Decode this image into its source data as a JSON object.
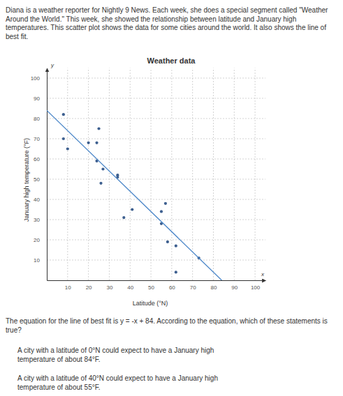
{
  "intro": "Diana is a weather reporter for Nightly 9 News. Each week, she does a special segment called \"Weather Around the World.\" This week, she showed the relationship between latitude and January high temperatures. This scatter plot shows the data for some cities around the world. It also shows the line of best fit.",
  "chart_data": {
    "type": "scatter",
    "title": "Weather data",
    "x_label": "Latitude (°N)",
    "y_label": "January high temperature (°F)",
    "annotations": [
      "y",
      "x"
    ],
    "series": [
      {
        "type": "scatter",
        "color": "#3d5f8f",
        "marker": "circle",
        "x": [
          8,
          8,
          10,
          20,
          24,
          25,
          24,
          26,
          27,
          34,
          34,
          37,
          41,
          55,
          57,
          55,
          58,
          62,
          73,
          62
        ],
        "values": [
          82,
          70,
          65,
          68,
          68,
          75,
          59,
          48,
          55,
          52,
          51,
          31,
          35,
          34,
          38,
          28,
          19,
          17,
          11,
          4
        ]
      },
      {
        "type": "line",
        "color": "#4a86c8",
        "line_style": "solid",
        "x": [
          0,
          84
        ],
        "values": [
          84,
          0
        ]
      }
    ],
    "xlim": [
      0,
      105
    ],
    "ylim": [
      0,
      105
    ],
    "xticks": [
      10,
      20,
      30,
      40,
      50,
      60,
      70,
      80,
      90,
      100
    ],
    "yticks": [
      10,
      20,
      30,
      40,
      50,
      60,
      70,
      80,
      90,
      100
    ],
    "grid": true
  },
  "question": "The equation for the line of best fit is y = -x + 84. According to the equation, which of these statements is true?",
  "options": [
    "A city with a latitude of 0°N could expect to have a January high temperature of about 84°F.",
    "A city with a latitude of 40°N could expect to have a January high temperature of about 55°F."
  ]
}
